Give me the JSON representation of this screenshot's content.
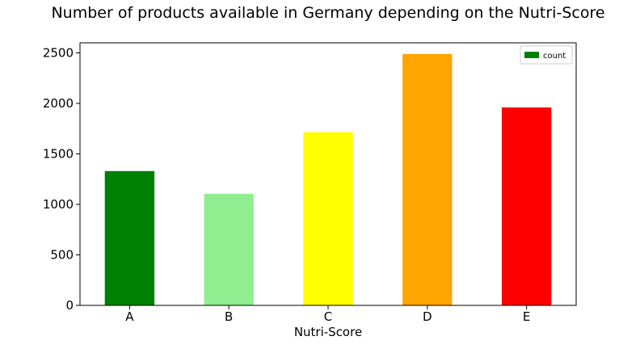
{
  "chart_data": {
    "type": "bar",
    "title": "Number of products available in Germany depending on the Nutri-Score",
    "xlabel": "Nutri-Score",
    "ylabel": "",
    "categories": [
      "A",
      "B",
      "C",
      "D",
      "E"
    ],
    "series": [
      {
        "name": "count",
        "values": [
          1330,
          1105,
          1715,
          2490,
          1960
        ],
        "colors": [
          "#008000",
          "#90ee90",
          "#ffff00",
          "#ffa500",
          "#ff0000"
        ]
      }
    ],
    "ylim": [
      0,
      2600
    ],
    "yticks": [
      0,
      500,
      1000,
      1500,
      2000,
      2500
    ],
    "grid": false,
    "legend_position": "top-right",
    "legend_color": "#008000"
  }
}
